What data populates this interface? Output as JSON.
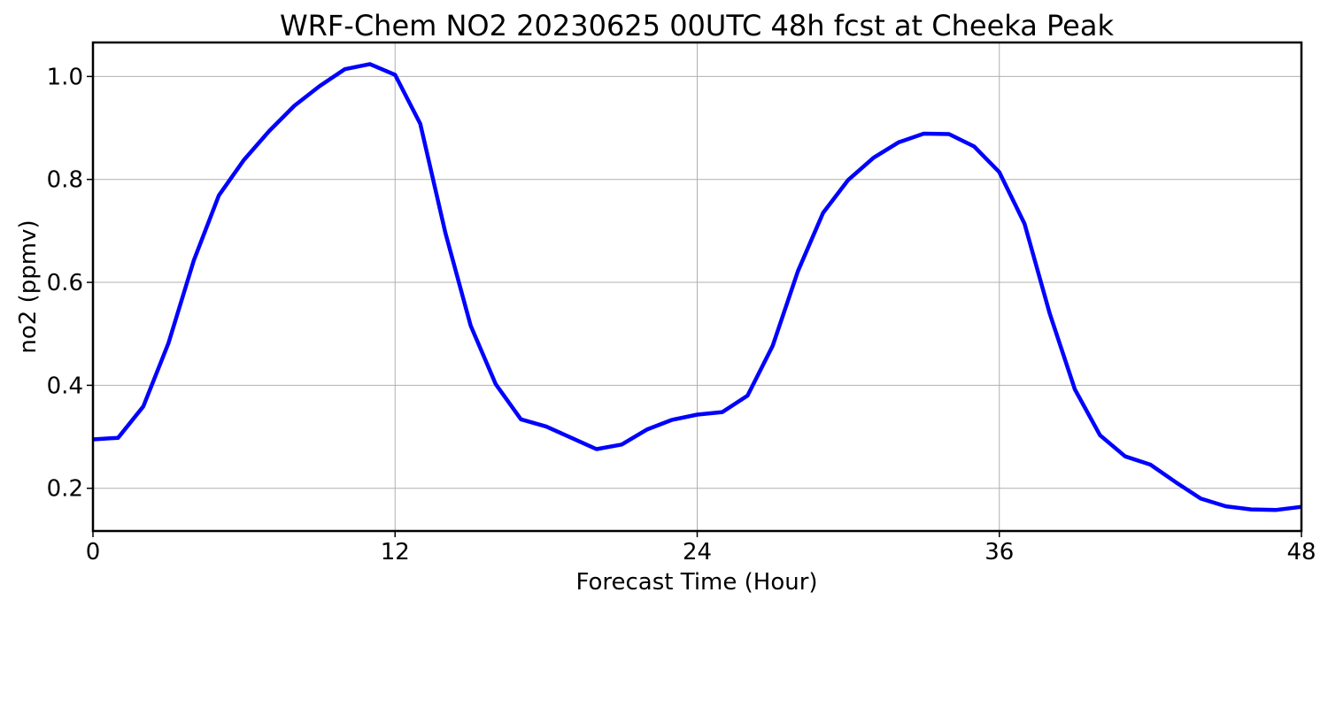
{
  "chart_data": {
    "type": "line",
    "title": "WRF-Chem NO2  20230625 00UTC 48h fcst at Cheeka Peak",
    "xlabel": "Forecast Time (Hour)",
    "ylabel": "no2  (ppmv)",
    "xlim": [
      0,
      48
    ],
    "ylim": [
      0.117,
      1.066
    ],
    "xticks": [
      0,
      12,
      24,
      36,
      48
    ],
    "yticks": [
      0.2,
      0.4,
      0.6,
      0.8,
      1.0
    ],
    "ytick_labels": [
      "0.2",
      "0.4",
      "0.6",
      "0.8",
      "1.0"
    ],
    "grid": true,
    "series": [
      {
        "color": "#0000ff",
        "x": [
          0,
          1,
          2,
          3,
          4,
          5,
          6,
          7,
          8,
          9,
          10,
          11,
          12,
          13,
          14,
          15,
          16,
          17,
          18,
          19,
          20,
          21,
          22,
          23,
          24,
          25,
          26,
          27,
          28,
          29,
          30,
          31,
          32,
          33,
          34,
          35,
          36,
          37,
          38,
          39,
          40,
          41,
          42,
          43,
          44,
          45,
          46,
          47,
          48
        ],
        "values": [
          0.295,
          0.298,
          0.359,
          0.482,
          0.642,
          0.769,
          0.838,
          0.894,
          0.943,
          0.981,
          1.014,
          1.024,
          1.003,
          0.908,
          0.696,
          0.516,
          0.402,
          0.334,
          0.32,
          0.298,
          0.276,
          0.285,
          0.314,
          0.333,
          0.343,
          0.348,
          0.38,
          0.477,
          0.622,
          0.735,
          0.799,
          0.842,
          0.872,
          0.889,
          0.888,
          0.864,
          0.814,
          0.714,
          0.54,
          0.392,
          0.303,
          0.262,
          0.246,
          0.212,
          0.18,
          0.165,
          0.159,
          0.158,
          0.164
        ]
      }
    ]
  }
}
